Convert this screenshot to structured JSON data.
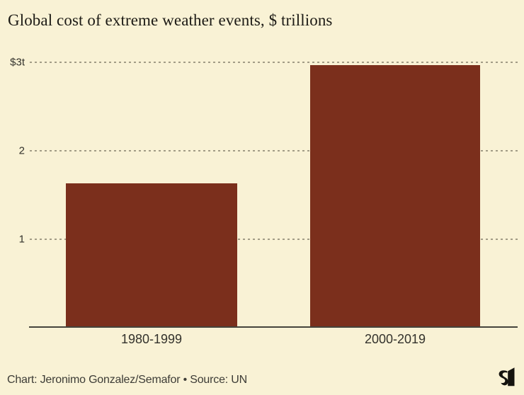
{
  "title": "Global cost of extreme weather events, $ trillions",
  "footer": {
    "credit": "Chart: Jeronimo Gonzalez/Semafor • Source: UN",
    "logo": "semafor-logo"
  },
  "colors": {
    "background": "#f9f2d5",
    "bar": "#7b2f1c",
    "gridline": "#a29c86",
    "axis": "#45443c",
    "title_text": "#1c1a15",
    "tick_text": "#33322c",
    "footer_text": "#3d3c36",
    "logo": "#15130e"
  },
  "chart_data": {
    "type": "bar",
    "title": "Global cost of extreme weather events, $ trillions",
    "categories": [
      "1980-1999",
      "2000-2019"
    ],
    "values": [
      1.63,
      2.97
    ],
    "xlabel": "",
    "ylabel": "$ trillions",
    "ylim": [
      0,
      3.2
    ],
    "yticks": [
      {
        "value": 1,
        "label": "1"
      },
      {
        "value": 2,
        "label": "2"
      },
      {
        "value": 3,
        "label": "$3t"
      }
    ],
    "grid": "horizontal-dotted",
    "legend": "none",
    "source": "UN",
    "credit": "Chart: Jeronimo Gonzalez/Semafor"
  }
}
